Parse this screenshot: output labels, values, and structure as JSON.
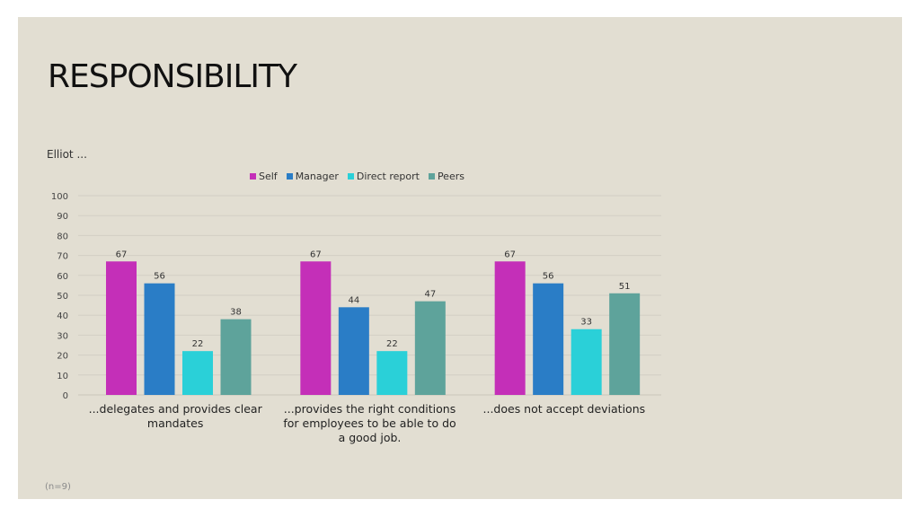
{
  "slide": {
    "title": "RESPONSIBILITY",
    "footnote": "(n=9)"
  },
  "chart_data": {
    "type": "bar",
    "title": "Elliot ...",
    "categories": [
      "...delegates and provides clear mandates",
      "...provides the right conditions for employees to be able to do a good job.",
      "...does not accept deviations"
    ],
    "category_lines": [
      [
        "...delegates and provides clear",
        "mandates"
      ],
      [
        "...provides the right conditions",
        "for employees to be able to do",
        "a good job."
      ],
      [
        "...does not accept deviations"
      ]
    ],
    "series": [
      {
        "name": "Self",
        "color": "#c42fb8",
        "values": [
          67,
          67,
          67
        ]
      },
      {
        "name": "Manager",
        "color": "#2a7dc6",
        "values": [
          56,
          44,
          56
        ]
      },
      {
        "name": "Direct report",
        "color": "#2ad0d8",
        "values": [
          22,
          22,
          33
        ]
      },
      {
        "name": "Peers",
        "color": "#5ea39b",
        "values": [
          38,
          47,
          51
        ]
      }
    ],
    "ylim": [
      0,
      100
    ],
    "yticks": [
      0,
      10,
      20,
      30,
      40,
      50,
      60,
      70,
      80,
      90,
      100
    ],
    "grid": true,
    "legend_position": "top"
  }
}
